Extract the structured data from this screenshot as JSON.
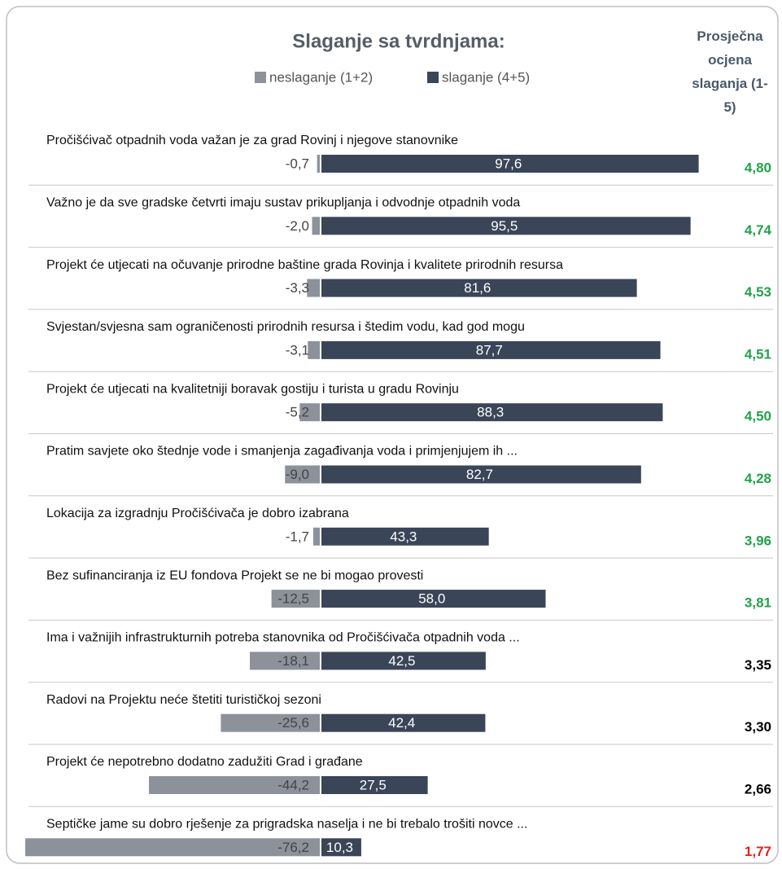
{
  "chart_data": {
    "type": "diverging-bar",
    "title": "Slaganje sa tvrdnjama:",
    "score_title": "Prosječna ocjena slaganja (1-5)",
    "categories": [
      "Pročišćivač otpadnih voda važan je za grad Rovinj i njegove stanovnike",
      "Važno je da sve gradske četvrti imaju sustav prikupljanja i odvodnje otpadnih voda",
      "Projekt će utjecati na očuvanje prirodne baštine grada Rovinja i kvalitete prirodnih resursa",
      "Svjestan/svjesna sam ograničenosti prirodnih resursa i štedim vodu, kad god mogu",
      "Projekt će utjecati na kvalitetniji boravak gostiju i turista u gradu Rovinju",
      "Pratim savjete oko štednje vode i smanjenja zagađivanja voda i primjenjujem ih ...",
      "Lokacija za izgradnju Pročišćivača je dobro izabrana",
      "Bez sufinanciranja iz EU fondova Projekt se ne bi mogao provesti",
      "Ima i važnijih infrastrukturnih potreba stanovnika od Pročišćivača otpadnih voda ...",
      "Radovi na Projektu neće štetiti turističkoj sezoni",
      "Projekt će nepotrebno dodatno zadužiti Grad i građane",
      "Septičke jame su dobro rješenje za prigradska naselja i ne bi trebalo trošiti novce ..."
    ],
    "series": [
      {
        "name": "neslaganje (1+2)",
        "color": "#8c919a",
        "values": [
          -0.7,
          -2.0,
          -3.3,
          -3.1,
          -5.2,
          -9.0,
          -1.7,
          -12.5,
          -18.1,
          -25.6,
          -44.2,
          -76.2
        ],
        "value_labels": [
          "-0,7",
          "-2,0",
          "-3,3",
          "-3,1",
          "-5,2",
          "-9,0",
          "-1,7",
          "-12,5",
          "-18,1",
          "-25,6",
          "-44,2",
          "-76,2"
        ]
      },
      {
        "name": "slaganje (4+5)",
        "color": "#3a4558",
        "values": [
          97.6,
          95.5,
          81.6,
          87.7,
          88.3,
          82.7,
          43.3,
          58.0,
          42.5,
          42.4,
          27.5,
          10.3
        ],
        "value_labels": [
          "97,6",
          "95,5",
          "81,6",
          "87,7",
          "88,3",
          "82,7",
          "43,3",
          "58,0",
          "42,5",
          "42,4",
          "27,5",
          "10,3"
        ]
      }
    ],
    "scores": [
      4.8,
      4.74,
      4.53,
      4.51,
      4.5,
      4.28,
      3.96,
      3.81,
      3.35,
      3.3,
      2.66,
      1.77
    ],
    "score_labels": [
      "4,80",
      "4,74",
      "4,53",
      "4,51",
      "4,50",
      "4,28",
      "3,96",
      "3,81",
      "3,35",
      "3,30",
      "2,66",
      "1,77"
    ],
    "score_colors": [
      "#21a24a",
      "#21a24a",
      "#21a24a",
      "#21a24a",
      "#21a24a",
      "#21a24a",
      "#21a24a",
      "#21a24a",
      "#000000",
      "#000000",
      "#000000",
      "#e3201b"
    ]
  }
}
